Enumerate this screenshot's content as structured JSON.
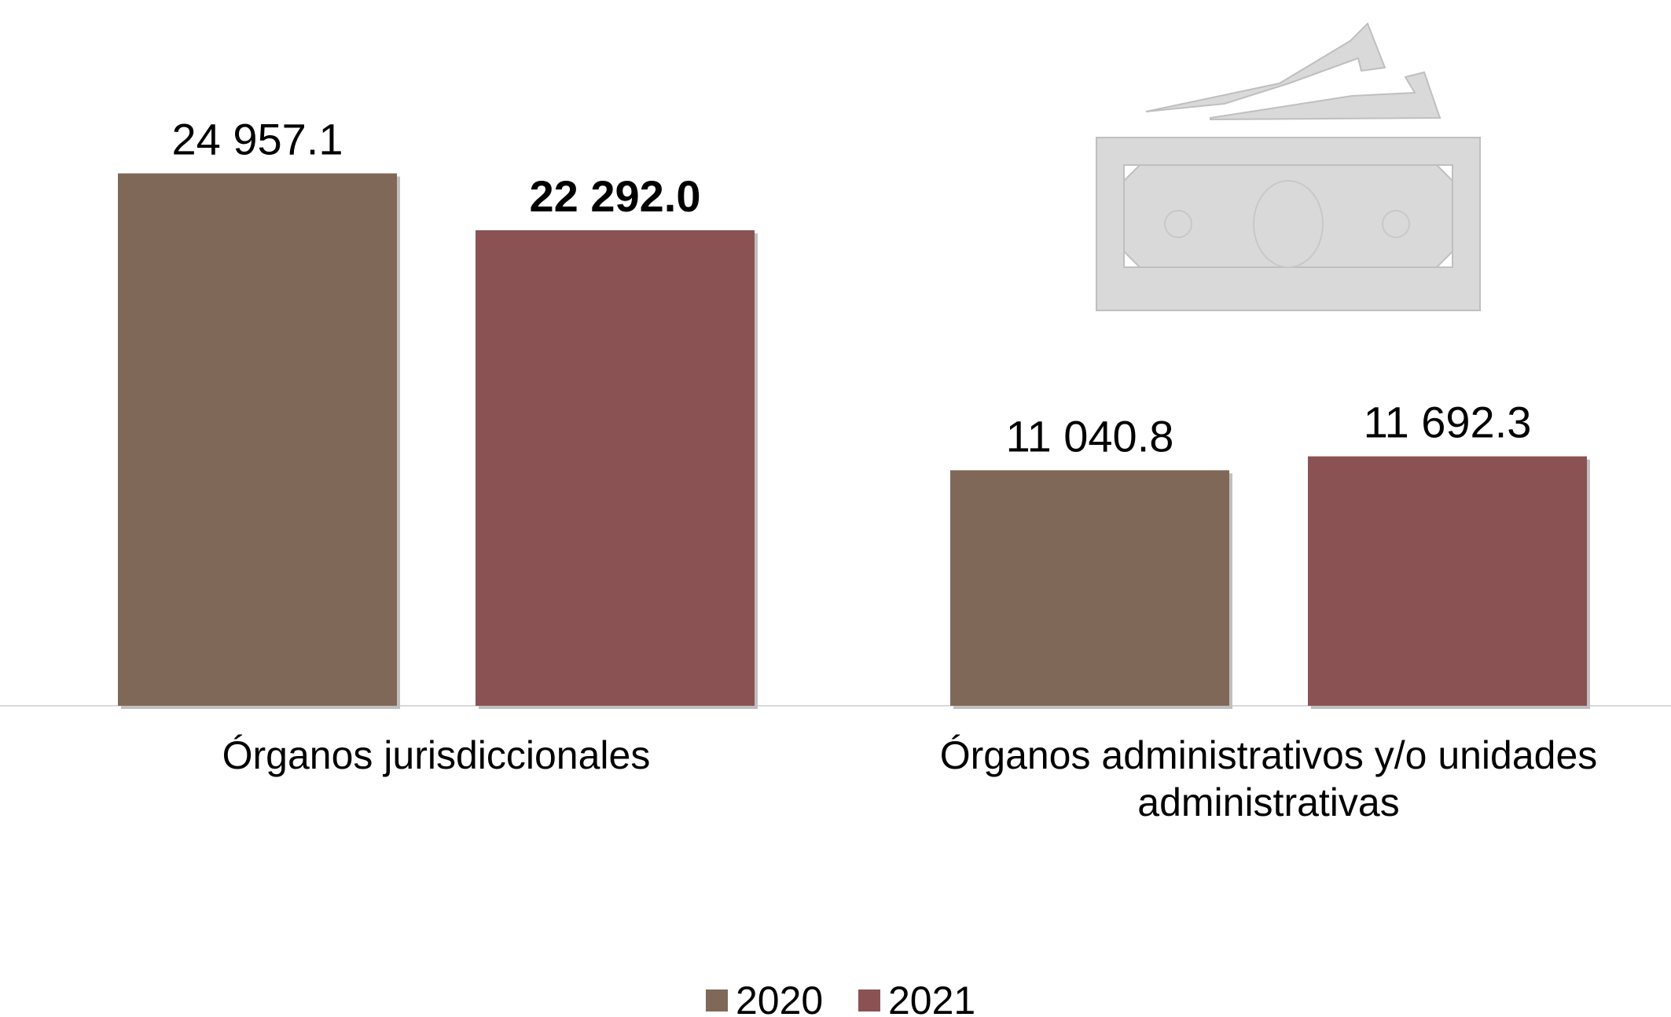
{
  "chart_data": {
    "type": "bar",
    "title": "",
    "xlabel": "",
    "ylabel": "",
    "ylim": [
      0,
      28000
    ],
    "grid": false,
    "categories": [
      [
        "Órganos jurisdiccionales"
      ],
      [
        "Órganos administrativos y/o unidades",
        "administrativas"
      ]
    ],
    "series": [
      {
        "name": "2020",
        "color": "#806859",
        "values": [
          24957.1,
          11040.8
        ],
        "labels": [
          "24 957.1",
          "11 040.8"
        ]
      },
      {
        "name": "2021",
        "color": "#8b5254",
        "values": [
          22292.0,
          11692.3
        ],
        "labels": [
          "22 292.0",
          "11 692.3"
        ]
      }
    ],
    "bold_labels": [
      [
        false,
        false
      ],
      [
        true,
        false
      ]
    ],
    "legend": {
      "position": "bottom"
    },
    "decoration_icon": "banknote-icon"
  }
}
